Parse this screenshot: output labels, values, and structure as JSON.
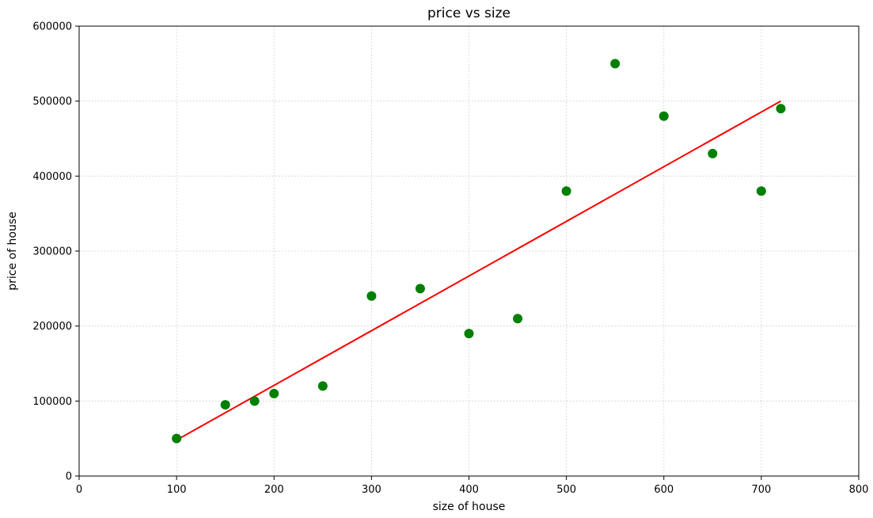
{
  "chart_data": {
    "type": "scatter",
    "title": "price vs size",
    "xlabel": "size of house",
    "ylabel": "price of house",
    "xlim": [
      0,
      800
    ],
    "ylim": [
      0,
      600000
    ],
    "xticks": [
      0,
      100,
      200,
      300,
      400,
      500,
      600,
      700,
      800
    ],
    "yticks": [
      0,
      100000,
      200000,
      300000,
      400000,
      500000,
      600000
    ],
    "grid": true,
    "points": {
      "color": "#008000",
      "x": [
        100,
        150,
        180,
        200,
        250,
        300,
        350,
        400,
        450,
        500,
        550,
        600,
        650,
        700,
        720
      ],
      "y": [
        50000,
        95000,
        100000,
        110000,
        120000,
        240000,
        250000,
        190000,
        210000,
        380000,
        550000,
        480000,
        430000,
        380000,
        490000
      ]
    },
    "fit_line": {
      "color": "#ff0000",
      "x": [
        100,
        720
      ],
      "y": [
        48000,
        500000
      ]
    }
  }
}
